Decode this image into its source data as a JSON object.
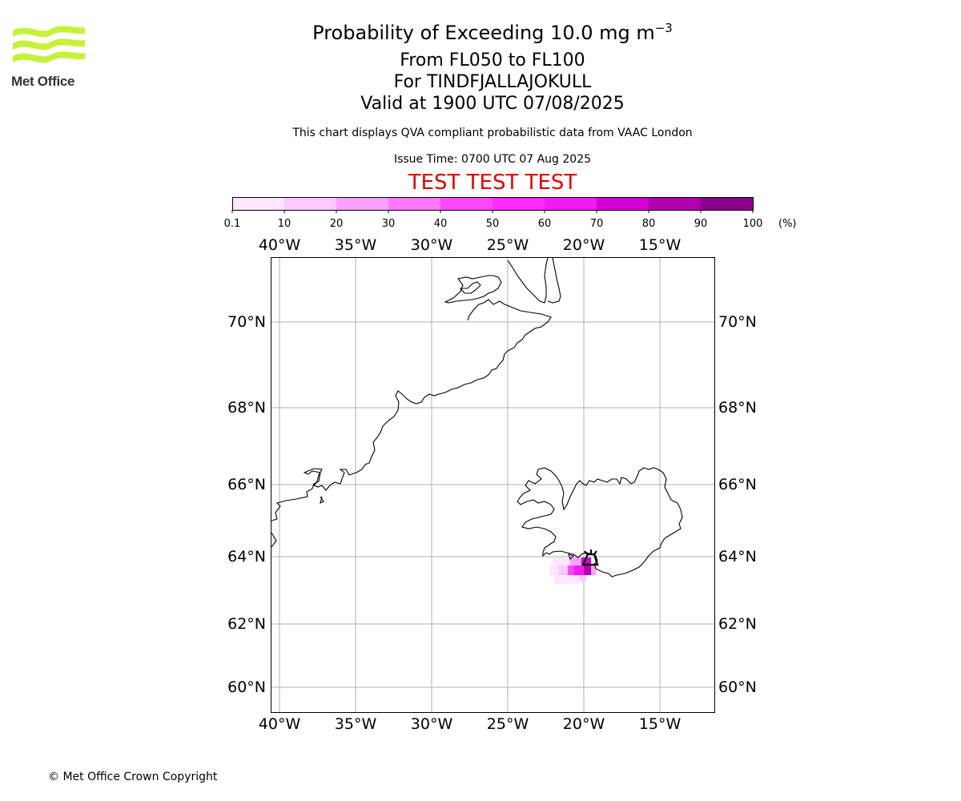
{
  "header": {
    "title_main": "Probability of Exceeding 10.0 mg m",
    "title_exponent": "−3",
    "level_range": "From FL050 to FL100",
    "volcano": "For TINDFJALLAJOKULL",
    "valid_time": "Valid at 1900 UTC 07/08/2025",
    "note": "This chart displays QVA compliant probabilistic data from VAAC London",
    "issue_time": "Issue Time: 0700 UTC 07 Aug 2025",
    "test_banner": "TEST TEST TEST"
  },
  "logo": {
    "text": "Met Office",
    "color": "#c6f23a"
  },
  "colorbar": {
    "ticks": [
      "0.1",
      "10",
      "20",
      "30",
      "40",
      "50",
      "60",
      "70",
      "80",
      "90",
      "100"
    ],
    "unit": "(%)",
    "colors": [
      "#ffe6ff",
      "#ffc8ff",
      "#ffa0ff",
      "#ff78ff",
      "#ff48ff",
      "#fe2cfe",
      "#f01cf0",
      "#d200d2",
      "#b000b0",
      "#8a008a",
      "#640064"
    ]
  },
  "map": {
    "lon_labels": [
      "40°W",
      "35°W",
      "30°W",
      "25°W",
      "20°W",
      "15°W"
    ],
    "lat_labels": [
      "70°N",
      "68°N",
      "66°N",
      "64°N",
      "62°N",
      "60°N"
    ],
    "volcano_marker": "volcano-icon"
  },
  "footer": {
    "copyright": "© Met Office Crown Copyright"
  }
}
